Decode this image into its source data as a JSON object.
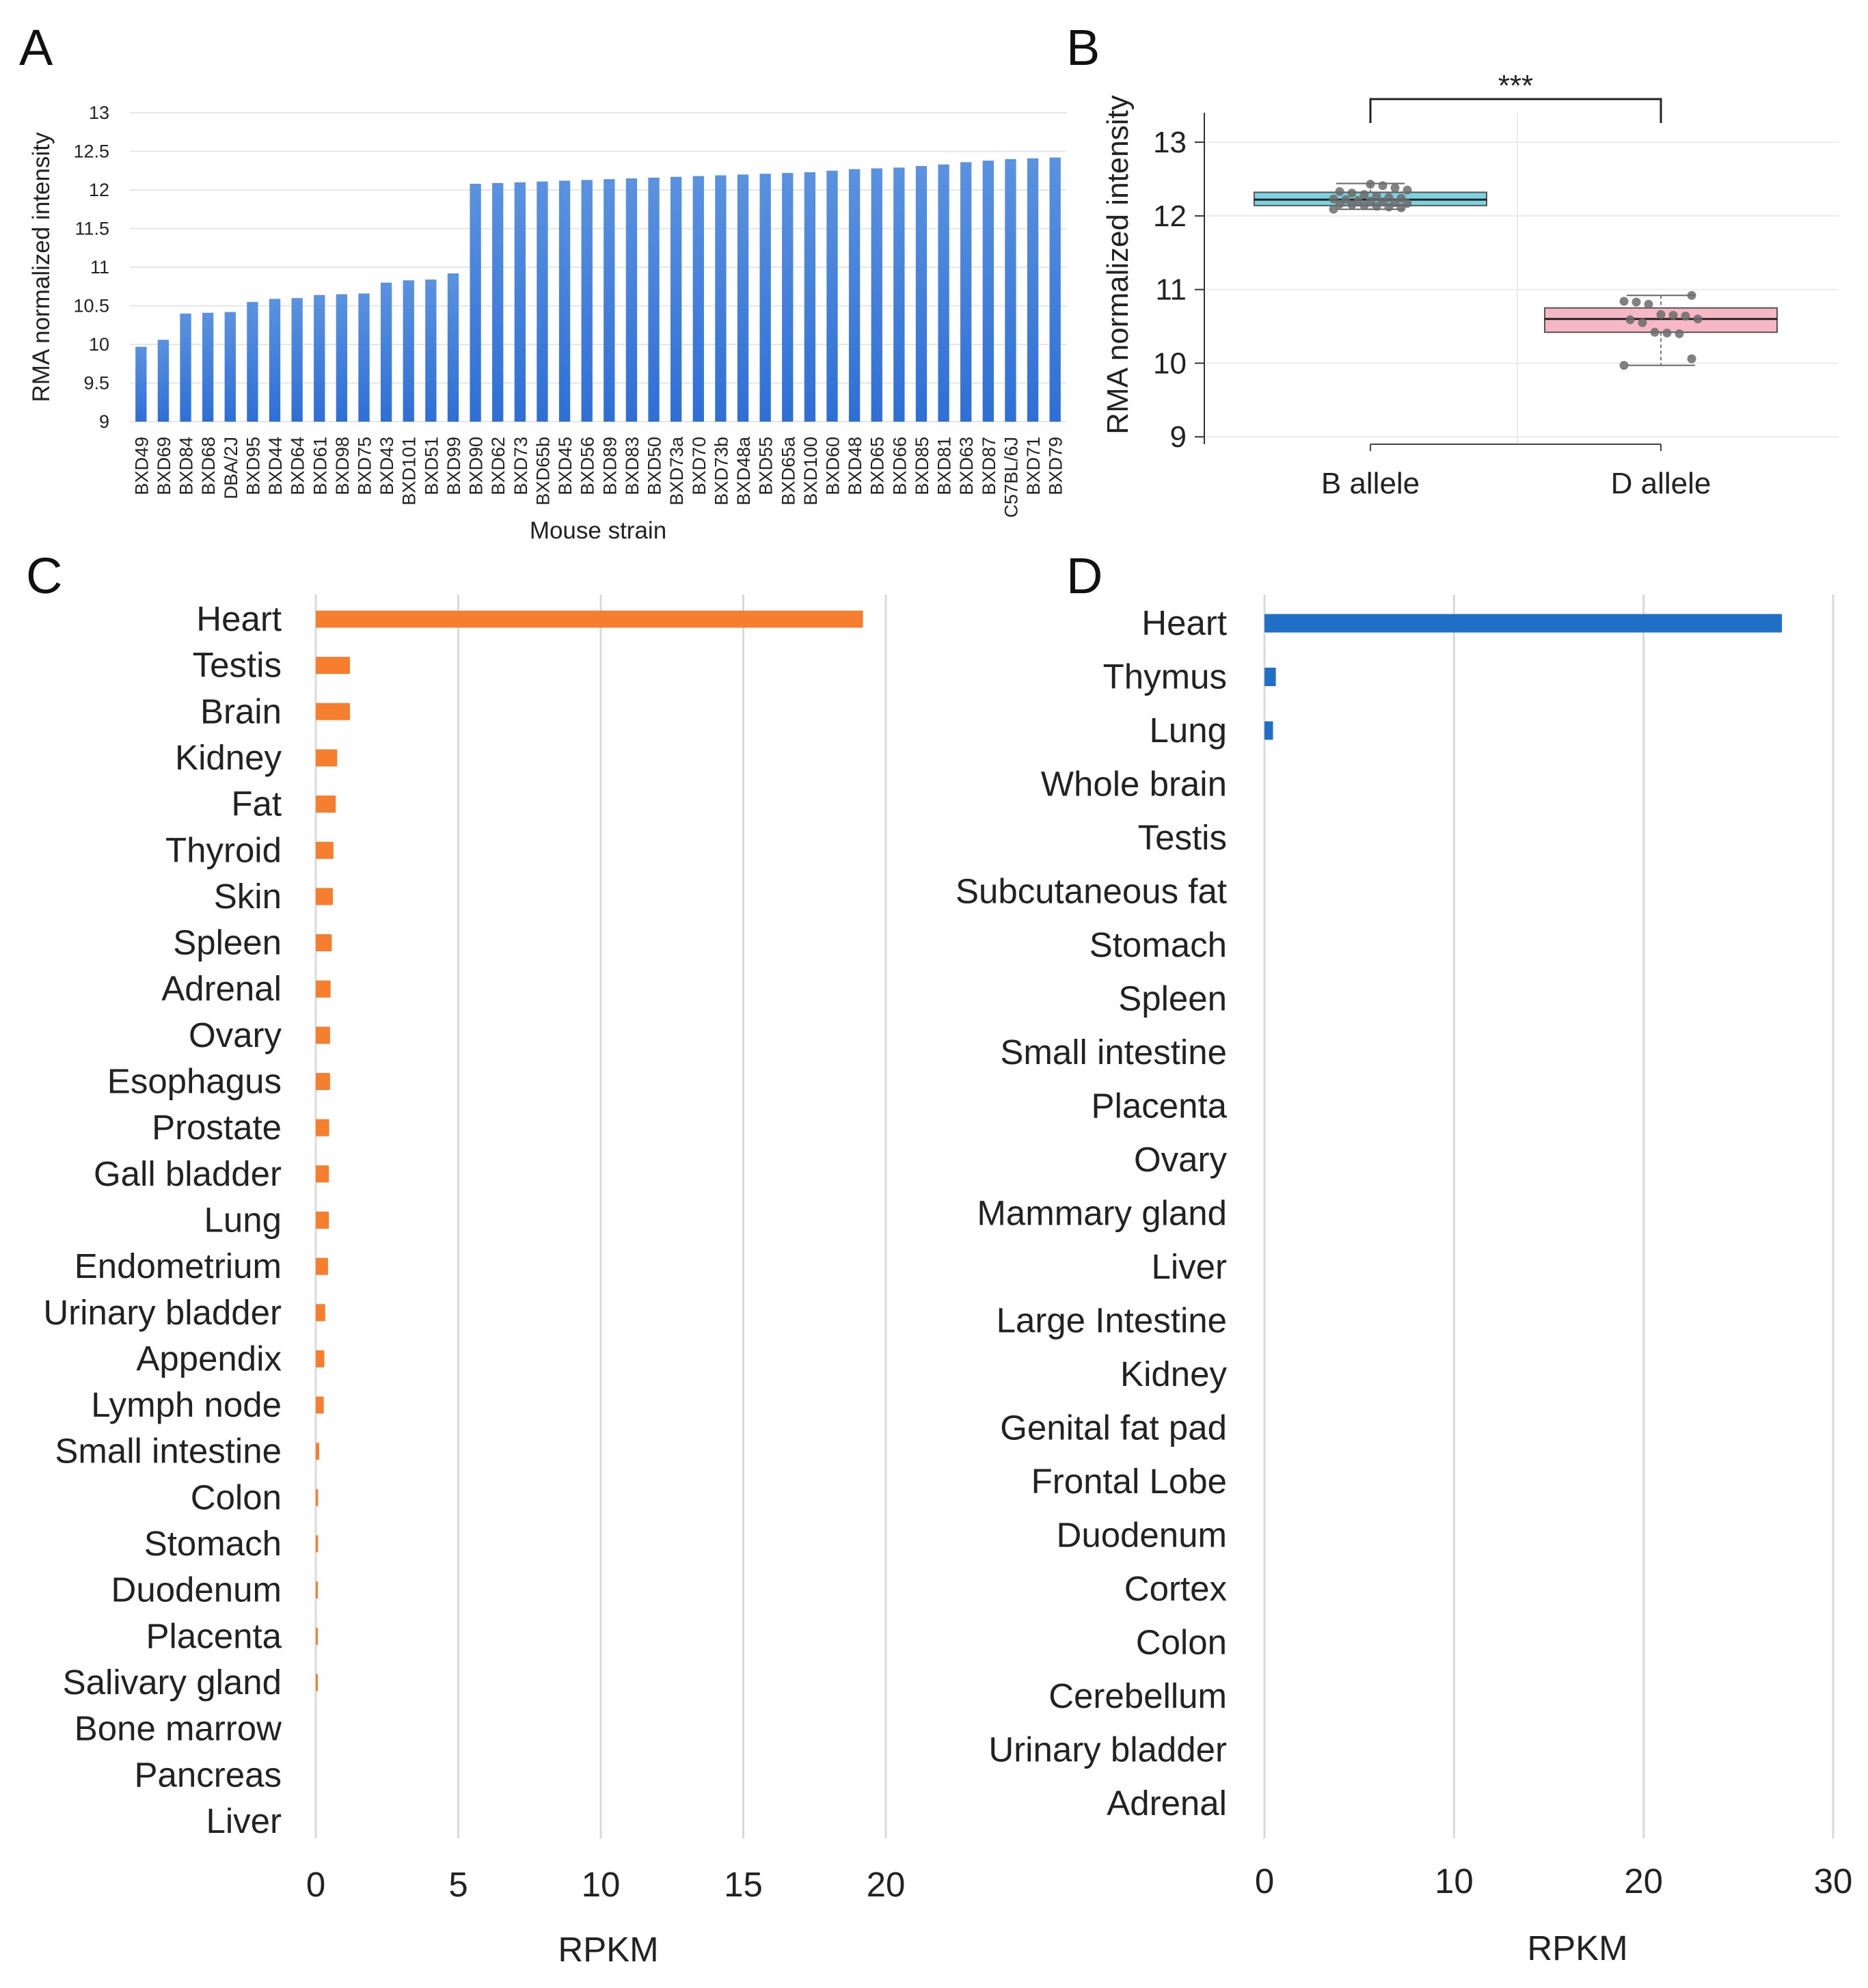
{
  "panels": {
    "A": {
      "letter": "A"
    },
    "B": {
      "letter": "B"
    },
    "C": {
      "letter": "C"
    },
    "D": {
      "letter": "D"
    }
  },
  "chart_data": [
    {
      "id": "A",
      "type": "bar",
      "title": "",
      "xlabel": "Mouse strain",
      "ylabel": "RMA normalized intensity",
      "ylim": [
        9,
        13
      ],
      "yticks": [
        "9",
        "9.5",
        "10",
        "10.5",
        "11",
        "11.5",
        "12",
        "12.5",
        "13"
      ],
      "grid": true,
      "bar_color": "#2e6fd6",
      "categories": [
        "BXD49",
        "BXD69",
        "BXD84",
        "BXD68",
        "DBA/2J",
        "BXD95",
        "BXD44",
        "BXD64",
        "BXD61",
        "BXD98",
        "BXD75",
        "BXD43",
        "BXD101",
        "BXD51",
        "BXD99",
        "BXD90",
        "BXD62",
        "BXD73",
        "BXD65b",
        "BXD45",
        "BXD56",
        "BXD89",
        "BXD83",
        "BXD50",
        "BXD73a",
        "BXD70",
        "BXD73b",
        "BXD48a",
        "BXD55",
        "BXD65a",
        "BXD100",
        "BXD60",
        "BXD48",
        "BXD65",
        "BXD66",
        "BXD85",
        "BXD81",
        "BXD63",
        "BXD87",
        "C57BL/6J",
        "BXD71",
        "BXD79"
      ],
      "values": [
        9.97,
        10.06,
        10.4,
        10.41,
        10.42,
        10.55,
        10.59,
        10.6,
        10.64,
        10.65,
        10.66,
        10.8,
        10.83,
        10.84,
        10.92,
        12.08,
        12.09,
        12.1,
        12.11,
        12.12,
        12.13,
        12.14,
        12.15,
        12.16,
        12.17,
        12.18,
        12.19,
        12.2,
        12.21,
        12.22,
        12.23,
        12.25,
        12.27,
        12.28,
        12.29,
        12.31,
        12.33,
        12.36,
        12.38,
        12.4,
        12.41,
        12.42
      ]
    },
    {
      "id": "B",
      "type": "box",
      "title": "",
      "xlabel": "",
      "ylabel": "RMA normalized intensity",
      "ylim": [
        8.9,
        13.4
      ],
      "yticks": [
        "9",
        "10",
        "11",
        "12",
        "13"
      ],
      "grid": true,
      "significance": "***",
      "groups": [
        {
          "name": "B allele",
          "color": "#7fd3e0",
          "min": 12.09,
          "q1": 12.14,
          "median": 12.22,
          "q3": 12.32,
          "max": 12.44,
          "points": [
            12.09,
            12.11,
            12.12,
            12.13,
            12.14,
            12.15,
            12.16,
            12.17,
            12.18,
            12.19,
            12.2,
            12.21,
            12.22,
            12.23,
            12.24,
            12.25,
            12.27,
            12.29,
            12.31,
            12.33,
            12.35,
            12.38,
            12.41,
            12.43
          ]
        },
        {
          "name": "D allele",
          "color": "#f7b8c6",
          "min": 9.97,
          "q1": 10.42,
          "median": 10.6,
          "q3": 10.75,
          "max": 10.92,
          "points": [
            9.97,
            10.06,
            10.4,
            10.41,
            10.42,
            10.55,
            10.59,
            10.6,
            10.64,
            10.65,
            10.66,
            10.8,
            10.83,
            10.84,
            10.92
          ]
        }
      ]
    },
    {
      "id": "C",
      "type": "bar",
      "orientation": "horizontal",
      "title": "",
      "xlabel": "RPKM",
      "ylabel": "",
      "xlim": [
        0,
        20
      ],
      "xticks": [
        "0",
        "5",
        "10",
        "15",
        "20"
      ],
      "grid": true,
      "bar_color": "#f57f2f",
      "categories": [
        "Heart",
        "Testis",
        "Brain",
        "Kidney",
        "Fat",
        "Thyroid",
        "Skin",
        "Spleen",
        "Adrenal",
        "Ovary",
        "Esophagus",
        "Prostate",
        "Gall bladder",
        "Lung",
        "Endometrium",
        "Urinary bladder",
        "Appendix",
        "Lymph node",
        "Small intestine",
        "Colon",
        "Stomach",
        "Duodenum",
        "Placenta",
        "Salivary gland",
        "Bone marrow",
        "Pancreas",
        "Liver"
      ],
      "values": [
        19.2,
        1.2,
        1.2,
        0.75,
        0.7,
        0.62,
        0.6,
        0.56,
        0.52,
        0.5,
        0.5,
        0.47,
        0.46,
        0.46,
        0.43,
        0.33,
        0.3,
        0.28,
        0.12,
        0.08,
        0.08,
        0.07,
        0.07,
        0.06,
        0,
        0,
        0
      ]
    },
    {
      "id": "D",
      "type": "bar",
      "orientation": "horizontal",
      "title": "",
      "xlabel": "RPKM",
      "ylabel": "",
      "xlim": [
        0,
        30
      ],
      "xticks": [
        "0",
        "10",
        "20",
        "30"
      ],
      "grid": true,
      "bar_color": "#1f6fc6",
      "categories": [
        "Heart",
        "Thymus",
        "Lung",
        "Whole brain",
        "Testis",
        "Subcutaneous fat",
        "Stomach",
        "Spleen",
        "Small intestine",
        "Placenta",
        "Ovary",
        "Mammary gland",
        "Liver",
        "Large Intestine",
        "Kidney",
        "Genital fat pad",
        "Frontal Lobe",
        "Duodenum",
        "Cortex",
        "Colon",
        "Cerebellum",
        "Urinary bladder",
        "Adrenal"
      ],
      "values": [
        27.3,
        0.6,
        0.45,
        0,
        0,
        0,
        0,
        0,
        0,
        0,
        0,
        0,
        0,
        0,
        0,
        0,
        0,
        0,
        0,
        0,
        0,
        0,
        0
      ]
    }
  ]
}
